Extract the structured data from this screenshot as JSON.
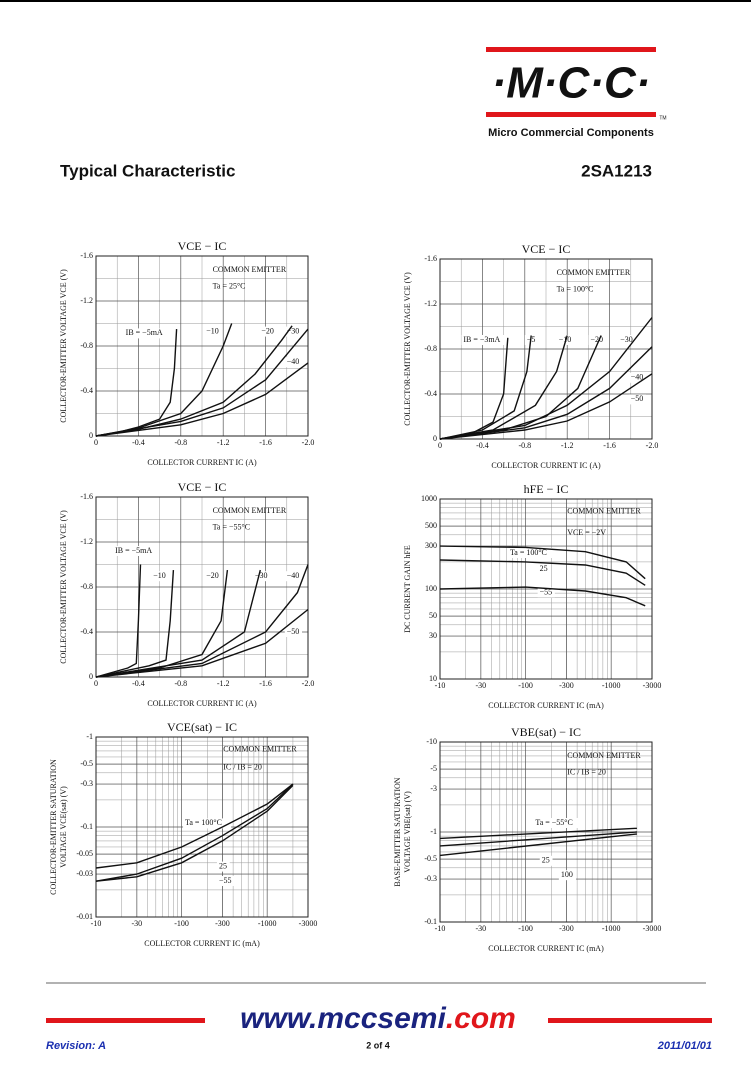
{
  "header": {
    "logo": "·M·C·C·",
    "trademark": "TM",
    "company": "Micro Commercial Components",
    "section": "Typical Characteristic",
    "part": "2SA1213"
  },
  "charts": [
    {
      "title": "VCE − IC",
      "x_label": "COLLECTOR CURRENT  IC  (A)",
      "y_label": [
        "COLLECTOR-EMITTER VOLTAGE  VCE  (V)"
      ],
      "log": false,
      "xlim": [
        0,
        -2.0
      ],
      "ylim": [
        0,
        -1.6
      ],
      "xticks": [
        0,
        -0.4,
        -0.8,
        -1.2,
        -1.6,
        {
          "value": -2.0,
          "label": "-2.0"
        }
      ],
      "yticks": [
        0,
        -0.4,
        -0.8,
        -1.2,
        -1.6
      ],
      "annotations": [
        "COMMON EMITTER",
        "Ta = 25°C",
        "IB = −5mA",
        "−10",
        "−20",
        "−30",
        "−40"
      ],
      "curves": [
        {
          "x": [
            0,
            -0.2,
            -0.4,
            -0.6,
            -0.7,
            -0.74,
            -0.76
          ],
          "y": [
            0,
            -0.03,
            -0.08,
            -0.15,
            -0.3,
            -0.6,
            -0.95
          ]
        },
        {
          "x": [
            0,
            -0.4,
            -0.8,
            -1.0,
            -1.2,
            -1.28
          ],
          "y": [
            0,
            -0.07,
            -0.2,
            -0.4,
            -0.8,
            -1.0
          ]
        },
        {
          "x": [
            0,
            -0.4,
            -0.8,
            -1.2,
            -1.5,
            -1.75,
            -1.85
          ],
          "y": [
            0,
            -0.06,
            -0.15,
            -0.3,
            -0.55,
            -0.85,
            -0.98
          ]
        },
        {
          "x": [
            0,
            -0.8,
            -1.2,
            -1.6,
            -2.0
          ],
          "y": [
            0,
            -0.13,
            -0.25,
            -0.5,
            -0.95
          ]
        },
        {
          "x": [
            0,
            -0.8,
            -1.2,
            -1.6,
            -2.0
          ],
          "y": [
            0,
            -0.1,
            -0.2,
            -0.37,
            -0.65
          ]
        }
      ]
    },
    {
      "title": "VCE − IC",
      "x_label": "COLLECTOR CURRENT  IC  (A)",
      "y_label": [
        "COLLECTOR-EMITTER VOLTAGE  VCE  (V)"
      ],
      "log": false,
      "xlim": [
        0,
        -2.0
      ],
      "ylim": [
        0,
        -1.6
      ],
      "xticks": [
        0,
        -0.4,
        -0.8,
        -1.2,
        -1.6,
        {
          "value": -2.0,
          "label": "-2.0"
        }
      ],
      "yticks": [
        0,
        -0.4,
        -0.8,
        -1.2,
        -1.6
      ],
      "annotations": [
        "COMMON EMITTER",
        "Ta = 100°C",
        "IB = −3mA",
        "−5",
        "−10",
        "−20",
        "−30",
        "−40",
        "−50"
      ],
      "curves": [
        {
          "x": [
            0,
            -0.3,
            -0.5,
            -0.6,
            -0.64
          ],
          "y": [
            0,
            -0.05,
            -0.15,
            -0.4,
            -0.9
          ]
        },
        {
          "x": [
            0,
            -0.4,
            -0.7,
            -0.82,
            -0.86
          ],
          "y": [
            0,
            -0.08,
            -0.25,
            -0.6,
            -0.92
          ]
        },
        {
          "x": [
            0,
            -0.5,
            -0.9,
            -1.1,
            -1.2
          ],
          "y": [
            0,
            -0.08,
            -0.3,
            -0.6,
            -0.92
          ]
        },
        {
          "x": [
            0,
            -0.6,
            -1.0,
            -1.3,
            -1.52
          ],
          "y": [
            0,
            -0.08,
            -0.2,
            -0.45,
            -0.92
          ]
        },
        {
          "x": [
            0,
            -0.8,
            -1.2,
            -1.6,
            -2.0
          ],
          "y": [
            0,
            -0.12,
            -0.3,
            -0.6,
            -1.08
          ]
        },
        {
          "x": [
            0,
            -0.8,
            -1.2,
            -1.6,
            -2.0
          ],
          "y": [
            0,
            -0.1,
            -0.22,
            -0.45,
            -0.82
          ]
        },
        {
          "x": [
            0,
            -0.8,
            -1.2,
            -1.6,
            -2.0
          ],
          "y": [
            0,
            -0.08,
            -0.16,
            -0.33,
            -0.58
          ]
        }
      ]
    },
    {
      "title": "VCE − IC",
      "x_label": "COLLECTOR CURRENT  IC  (A)",
      "y_label": [
        "COLLECTOR-EMITTER VOLTAGE  VCE  (V)"
      ],
      "log": false,
      "xlim": [
        0,
        -2.0
      ],
      "ylim": [
        0,
        -1.6
      ],
      "xticks": [
        0,
        -0.4,
        -0.8,
        -1.2,
        -1.6,
        {
          "value": -2.0,
          "label": "-2.0"
        }
      ],
      "yticks": [
        0,
        -0.4,
        -0.8,
        -1.2,
        -1.6
      ],
      "annotations": [
        "COMMON EMITTER",
        "Ta = −55°C",
        "IB = −5mA",
        "−10",
        "−20",
        "−30",
        "−40",
        "−50"
      ],
      "curves": [
        {
          "x": [
            0,
            -0.3,
            -0.38,
            -0.4,
            -0.42
          ],
          "y": [
            0,
            -0.08,
            -0.12,
            -0.5,
            -1.0
          ]
        },
        {
          "x": [
            0,
            -0.5,
            -0.66,
            -0.7,
            -0.73
          ],
          "y": [
            0,
            -0.1,
            -0.15,
            -0.5,
            -0.95
          ]
        },
        {
          "x": [
            0,
            -0.6,
            -1.0,
            -1.18,
            -1.24
          ],
          "y": [
            0,
            -0.08,
            -0.2,
            -0.5,
            -0.95
          ]
        },
        {
          "x": [
            0,
            -1.0,
            -1.4,
            -1.55
          ],
          "y": [
            0,
            -0.15,
            -0.4,
            -0.95
          ]
        },
        {
          "x": [
            0,
            -1.0,
            -1.6,
            -1.9,
            -2.0
          ],
          "y": [
            0,
            -0.12,
            -0.4,
            -0.75,
            -1.0
          ]
        },
        {
          "x": [
            0,
            -1.0,
            -1.6,
            -2.0
          ],
          "y": [
            0,
            -0.1,
            -0.3,
            -0.6
          ]
        }
      ]
    },
    {
      "title": "hFE − IC",
      "x_label": "COLLECTOR CURRENT  IC  (mA)",
      "y_label": [
        "DC CURRENT GAIN  hFE"
      ],
      "log": true,
      "xlim": [
        -10,
        -3000
      ],
      "ylim": [
        10,
        1000
      ],
      "xticks": [
        -10,
        -30,
        -100,
        -300,
        -1000,
        -3000
      ],
      "yticks": [
        10,
        30,
        50,
        100,
        300,
        500,
        1000
      ],
      "annotations": [
        "COMMON EMITTER",
        "VCE = −2V",
        "Ta = 100°C",
        "25",
        "−55"
      ],
      "curves": [
        {
          "x": [
            -10,
            -100,
            -500,
            -1500,
            -2500
          ],
          "y": [
            300,
            290,
            260,
            200,
            130
          ]
        },
        {
          "x": [
            -10,
            -100,
            -500,
            -1500,
            -2500
          ],
          "y": [
            210,
            200,
            185,
            150,
            110
          ]
        },
        {
          "x": [
            -10,
            -100,
            -500,
            -1500,
            -2500
          ],
          "y": [
            100,
            105,
            95,
            80,
            65
          ]
        }
      ]
    },
    {
      "title": "VCE(sat) − IC",
      "x_label": "COLLECTOR CURRENT  IC  (mA)",
      "y_label": [
        "COLLECTOR-EMITTER SATURATION",
        "VOLTAGE  VCE(sat)  (V)"
      ],
      "log": true,
      "xlim": [
        -10,
        -3000
      ],
      "ylim": [
        -0.01,
        -1
      ],
      "xticks": [
        -10,
        -30,
        -100,
        -300,
        -1000,
        -3000
      ],
      "yticks": [
        -1,
        -0.5,
        -0.3,
        -0.1,
        -0.05,
        -0.03,
        -0.01
      ],
      "annotations": [
        "COMMON EMITTER",
        "IC / IB = 20",
        "Ta = 100°C",
        "25",
        "−55"
      ],
      "curves": [
        {
          "x": [
            -10,
            -30,
            -100,
            -300,
            -1000,
            -2000
          ],
          "y": [
            -0.035,
            -0.04,
            -0.06,
            -0.1,
            -0.18,
            -0.3
          ]
        },
        {
          "x": [
            -10,
            -30,
            -100,
            -300,
            -1000,
            -2000
          ],
          "y": [
            -0.025,
            -0.03,
            -0.045,
            -0.08,
            -0.16,
            -0.3
          ]
        },
        {
          "x": [
            -10,
            -30,
            -100,
            -300,
            -1000,
            -2000
          ],
          "y": [
            -0.025,
            -0.028,
            -0.04,
            -0.07,
            -0.15,
            -0.29
          ]
        }
      ]
    },
    {
      "title": "VBE(sat) − IC",
      "x_label": "COLLECTOR CURRENT  IC  (mA)",
      "y_label": [
        "BASE-EMITTER SATURATION",
        "VOLTAGE  VBE(sat)  (V)"
      ],
      "log": true,
      "xlim": [
        -10,
        -3000
      ],
      "ylim": [
        -0.1,
        -10
      ],
      "xticks": [
        -10,
        -30,
        -100,
        -300,
        -1000,
        -3000
      ],
      "yticks": [
        -10,
        -5,
        -3,
        -1,
        -0.5,
        -0.3,
        -0.1
      ],
      "annotations": [
        "COMMON EMITTER",
        "IC / IB = 20",
        "Ta = −55°C",
        "25",
        "100"
      ],
      "curves": [
        {
          "x": [
            -10,
            -2000
          ],
          "y": [
            -0.85,
            -1.1
          ]
        },
        {
          "x": [
            -10,
            -2000
          ],
          "y": [
            -0.7,
            -1.0
          ]
        },
        {
          "x": [
            -10,
            -2000
          ],
          "y": [
            -0.55,
            -0.95
          ]
        }
      ]
    }
  ],
  "footer": {
    "site_main": "www.mccsemi",
    "site_tld": ".com",
    "revision": "Revision: A",
    "page": "2 of 4",
    "date": "2011/01/01"
  }
}
